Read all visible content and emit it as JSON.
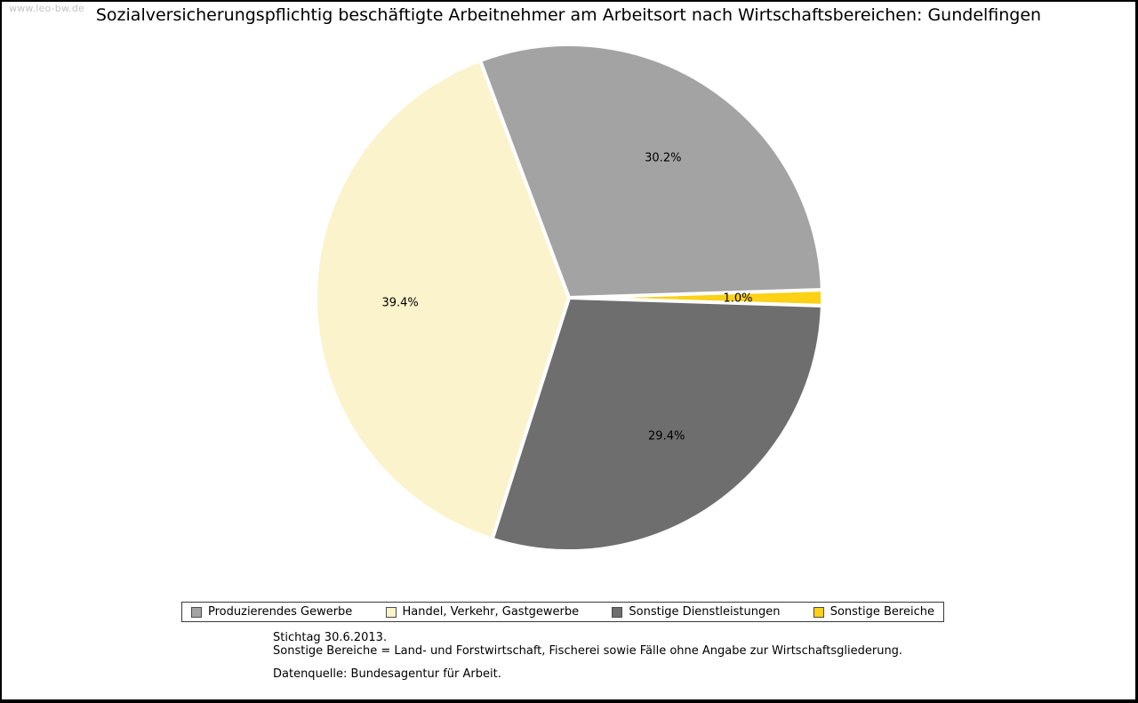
{
  "watermark": "www.leo-bw.de",
  "title": "Sozialversicherungspflichtig beschäftigte Arbeitnehmer am Arbeitsort nach Wirtschaftsbereichen: Gundelfingen",
  "chart_data": {
    "type": "pie",
    "title": "Sozialversicherungspflichtig beschäftigte Arbeitnehmer am Arbeitsort nach Wirtschaftsbereichen: Gundelfingen",
    "unit": "%",
    "slices": [
      {
        "label": "Produzierendes Gewerbe",
        "value": 30.2,
        "display": "30.2%",
        "color": "#a3a3a3"
      },
      {
        "label": "Handel, Verkehr, Gastgewerbe",
        "value": 39.4,
        "display": "39.4%",
        "color": "#fbf3cb"
      },
      {
        "label": "Sonstige Dienstleistungen",
        "value": 29.4,
        "display": "29.4%",
        "color": "#6e6e6e"
      },
      {
        "label": "Sonstige Bereiche",
        "value": 1.0,
        "display": "1.0%",
        "color": "#fcd116"
      }
    ],
    "slice_separator_color": "#ffffff",
    "legend_position": "bottom",
    "label_position": "inside"
  },
  "footnotes": {
    "line1": "Stichtag 30.6.2013.",
    "line2": "Sonstige Bereiche = Land- und Forstwirtschaft, Fischerei sowie Fälle ohne Angabe zur Wirtschaftsgliederung.",
    "line3": "Datenquelle: Bundesagentur für Arbeit."
  }
}
